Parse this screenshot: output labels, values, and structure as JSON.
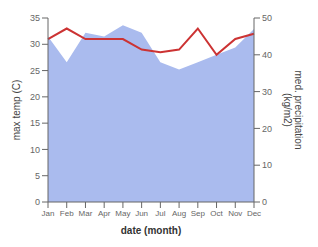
{
  "chart_data": {
    "type": "line",
    "xlabel": "date (month)",
    "ylabel": "max temp (C)",
    "y2label": "med. precipitation\n(kg/m2)",
    "categories": [
      "Jan",
      "Feb",
      "Mar",
      "Apr",
      "May",
      "Jun",
      "Jul",
      "Aug",
      "Sep",
      "Oct",
      "Nov",
      "Dec"
    ],
    "series": [
      {
        "type": "area",
        "axis": "y2",
        "color": "#aabbee",
        "values": [
          45,
          38,
          46,
          45,
          48,
          46,
          38,
          36,
          38,
          40,
          42,
          47
        ]
      },
      {
        "type": "line",
        "color": "#cc3333",
        "values": [
          31.0,
          33.0,
          31.0,
          31.0,
          31.0,
          29.0,
          28.5,
          29.0,
          33.0,
          28.0,
          31.0,
          32.0
        ]
      }
    ],
    "ylim": [
      0,
      35
    ],
    "yticks": [
      0,
      5,
      10,
      15,
      20,
      25,
      30,
      35
    ],
    "y2lim": [
      0,
      50
    ],
    "y2ticks": [
      0,
      10,
      20,
      30,
      40,
      50
    ]
  }
}
